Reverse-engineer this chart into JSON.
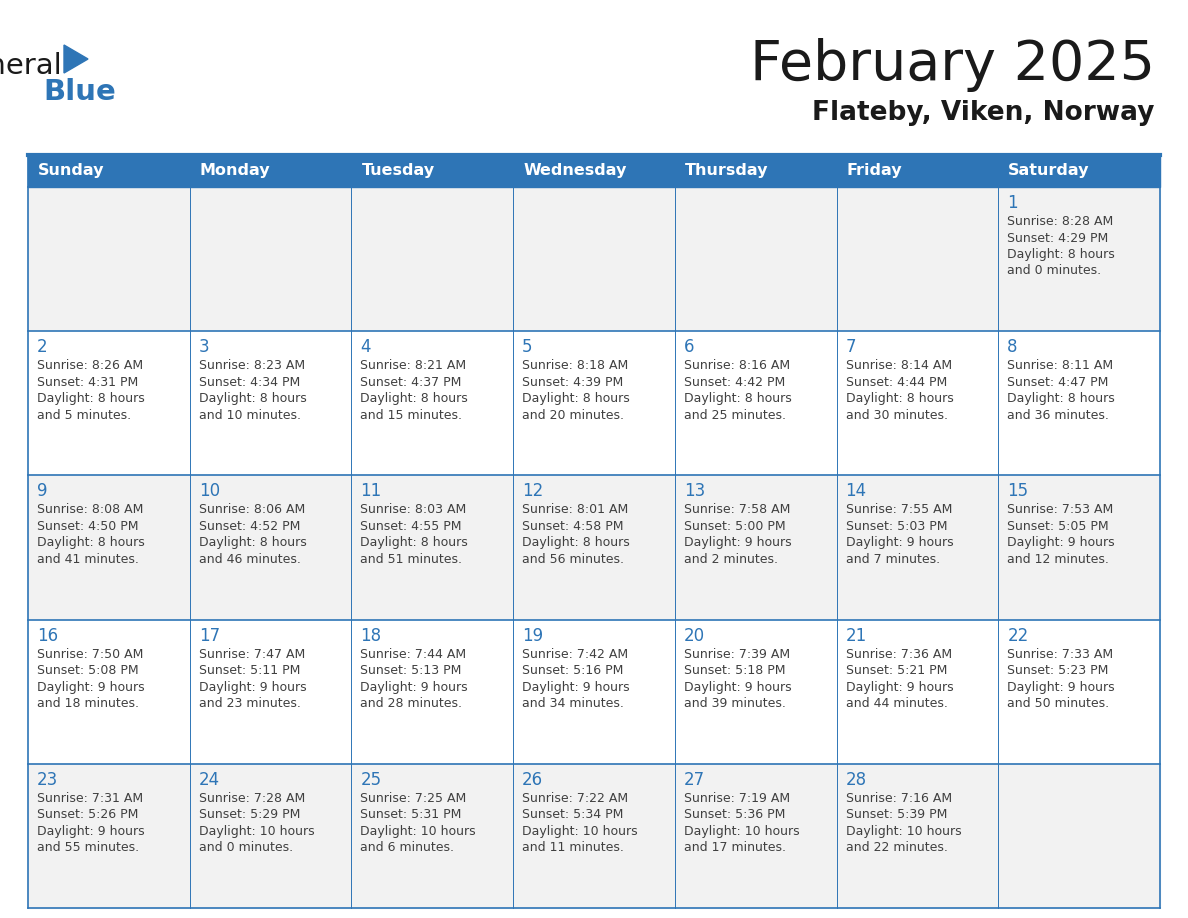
{
  "title": "February 2025",
  "subtitle": "Flateby, Viken, Norway",
  "header_bg": "#2E75B6",
  "header_text": "#FFFFFF",
  "header_days": [
    "Sunday",
    "Monday",
    "Tuesday",
    "Wednesday",
    "Thursday",
    "Friday",
    "Saturday"
  ],
  "row_colors": [
    "#F2F2F2",
    "#FFFFFF",
    "#F2F2F2",
    "#FFFFFF",
    "#F2F2F2"
  ],
  "cell_border": "#2E75B6",
  "day_number_color": "#2E75B6",
  "info_text_color": "#404040",
  "title_color": "#1a1a1a",
  "subtitle_color": "#1a1a1a",
  "logo_general_color": "#1a1a1a",
  "logo_blue_color": "#2E75B6",
  "calendar_data": [
    [
      null,
      null,
      null,
      null,
      null,
      null,
      {
        "day": 1,
        "sunrise": "8:28 AM",
        "sunset": "4:29 PM",
        "daylight": "8 hours and 0 minutes."
      }
    ],
    [
      {
        "day": 2,
        "sunrise": "8:26 AM",
        "sunset": "4:31 PM",
        "daylight": "8 hours and 5 minutes."
      },
      {
        "day": 3,
        "sunrise": "8:23 AM",
        "sunset": "4:34 PM",
        "daylight": "8 hours and 10 minutes."
      },
      {
        "day": 4,
        "sunrise": "8:21 AM",
        "sunset": "4:37 PM",
        "daylight": "8 hours and 15 minutes."
      },
      {
        "day": 5,
        "sunrise": "8:18 AM",
        "sunset": "4:39 PM",
        "daylight": "8 hours and 20 minutes."
      },
      {
        "day": 6,
        "sunrise": "8:16 AM",
        "sunset": "4:42 PM",
        "daylight": "8 hours and 25 minutes."
      },
      {
        "day": 7,
        "sunrise": "8:14 AM",
        "sunset": "4:44 PM",
        "daylight": "8 hours and 30 minutes."
      },
      {
        "day": 8,
        "sunrise": "8:11 AM",
        "sunset": "4:47 PM",
        "daylight": "8 hours and 36 minutes."
      }
    ],
    [
      {
        "day": 9,
        "sunrise": "8:08 AM",
        "sunset": "4:50 PM",
        "daylight": "8 hours and 41 minutes."
      },
      {
        "day": 10,
        "sunrise": "8:06 AM",
        "sunset": "4:52 PM",
        "daylight": "8 hours and 46 minutes."
      },
      {
        "day": 11,
        "sunrise": "8:03 AM",
        "sunset": "4:55 PM",
        "daylight": "8 hours and 51 minutes."
      },
      {
        "day": 12,
        "sunrise": "8:01 AM",
        "sunset": "4:58 PM",
        "daylight": "8 hours and 56 minutes."
      },
      {
        "day": 13,
        "sunrise": "7:58 AM",
        "sunset": "5:00 PM",
        "daylight": "9 hours and 2 minutes."
      },
      {
        "day": 14,
        "sunrise": "7:55 AM",
        "sunset": "5:03 PM",
        "daylight": "9 hours and 7 minutes."
      },
      {
        "day": 15,
        "sunrise": "7:53 AM",
        "sunset": "5:05 PM",
        "daylight": "9 hours and 12 minutes."
      }
    ],
    [
      {
        "day": 16,
        "sunrise": "7:50 AM",
        "sunset": "5:08 PM",
        "daylight": "9 hours and 18 minutes."
      },
      {
        "day": 17,
        "sunrise": "7:47 AM",
        "sunset": "5:11 PM",
        "daylight": "9 hours and 23 minutes."
      },
      {
        "day": 18,
        "sunrise": "7:44 AM",
        "sunset": "5:13 PM",
        "daylight": "9 hours and 28 minutes."
      },
      {
        "day": 19,
        "sunrise": "7:42 AM",
        "sunset": "5:16 PM",
        "daylight": "9 hours and 34 minutes."
      },
      {
        "day": 20,
        "sunrise": "7:39 AM",
        "sunset": "5:18 PM",
        "daylight": "9 hours and 39 minutes."
      },
      {
        "day": 21,
        "sunrise": "7:36 AM",
        "sunset": "5:21 PM",
        "daylight": "9 hours and 44 minutes."
      },
      {
        "day": 22,
        "sunrise": "7:33 AM",
        "sunset": "5:23 PM",
        "daylight": "9 hours and 50 minutes."
      }
    ],
    [
      {
        "day": 23,
        "sunrise": "7:31 AM",
        "sunset": "5:26 PM",
        "daylight": "9 hours and 55 minutes."
      },
      {
        "day": 24,
        "sunrise": "7:28 AM",
        "sunset": "5:29 PM",
        "daylight": "10 hours and 0 minutes."
      },
      {
        "day": 25,
        "sunrise": "7:25 AM",
        "sunset": "5:31 PM",
        "daylight": "10 hours and 6 minutes."
      },
      {
        "day": 26,
        "sunrise": "7:22 AM",
        "sunset": "5:34 PM",
        "daylight": "10 hours and 11 minutes."
      },
      {
        "day": 27,
        "sunrise": "7:19 AM",
        "sunset": "5:36 PM",
        "daylight": "10 hours and 17 minutes."
      },
      {
        "day": 28,
        "sunrise": "7:16 AM",
        "sunset": "5:39 PM",
        "daylight": "10 hours and 22 minutes."
      },
      null
    ]
  ]
}
